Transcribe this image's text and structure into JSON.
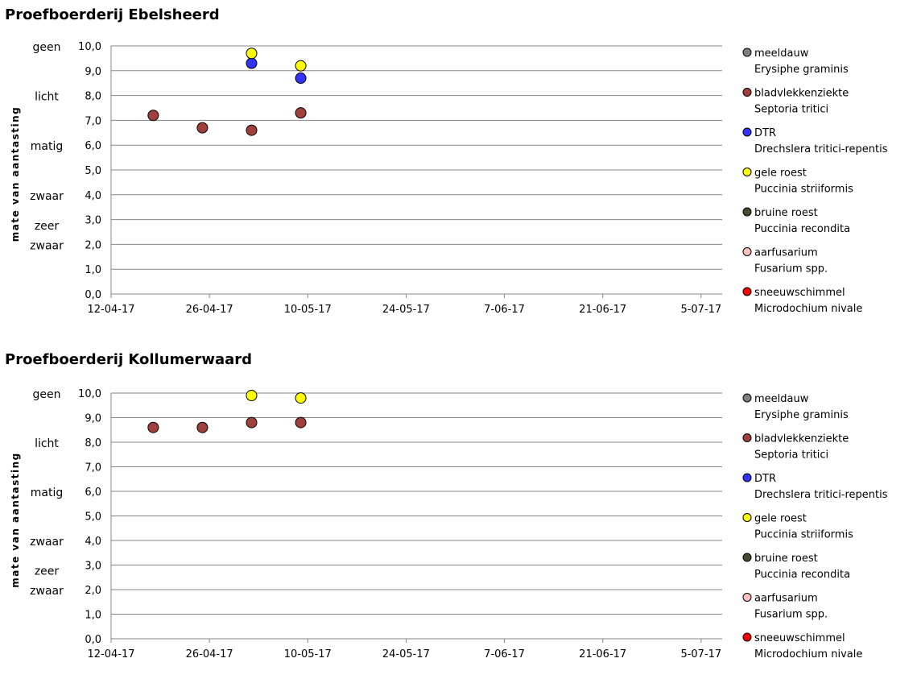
{
  "chart_data": [
    {
      "type": "scatter",
      "title": "Proefboerderij Ebelsheerd",
      "ylabel": "mate van aantasting",
      "ylim": [
        0,
        10
      ],
      "yticks": [
        "0,0",
        "1,0",
        "2,0",
        "3,0",
        "4,0",
        "5,0",
        "6,0",
        "7,0",
        "8,0",
        "9,0",
        "10,0"
      ],
      "ycategories": [
        {
          "label": "geen",
          "y": 10
        },
        {
          "label": "licht",
          "y": 8
        },
        {
          "label": "matig",
          "y": 6
        },
        {
          "label": "zwaar",
          "y": 4
        },
        {
          "label": "zeer",
          "y": 2.8
        },
        {
          "label": "zwaar",
          "y": 2
        }
      ],
      "x_start": "2017-04-12",
      "xlim_days": [
        0,
        87
      ],
      "xticks": [
        {
          "label": "12-04-17",
          "day": 0
        },
        {
          "label": "26-04-17",
          "day": 14
        },
        {
          "label": "10-05-17",
          "day": 28
        },
        {
          "label": "24-05-17",
          "day": 42
        },
        {
          "label": "7-06-17",
          "day": 56
        },
        {
          "label": "21-06-17",
          "day": 70
        },
        {
          "label": "5-07-17",
          "day": 84
        }
      ],
      "grid": true,
      "legend_position": "right",
      "series": [
        {
          "name": "meeldauw",
          "latin": "Erysiphe graminis",
          "color": "#808080",
          "points": []
        },
        {
          "name": "bladvlekkenziekte",
          "latin": "Septoria tritici",
          "color": "#A0403C",
          "points": [
            {
              "day": 6,
              "y": 7.2
            },
            {
              "day": 13,
              "y": 6.7
            },
            {
              "day": 20,
              "y": 6.6
            },
            {
              "day": 27,
              "y": 7.3
            }
          ]
        },
        {
          "name": "DTR",
          "latin": "Drechslera tritici-repentis",
          "color": "#3333FF",
          "points": [
            {
              "day": 20,
              "y": 9.3
            },
            {
              "day": 27,
              "y": 8.7
            }
          ]
        },
        {
          "name": "gele roest",
          "latin": "Puccinia striiformis",
          "color": "#FFFF00",
          "points": [
            {
              "day": 20,
              "y": 9.7
            },
            {
              "day": 27,
              "y": 9.2
            }
          ]
        },
        {
          "name": "bruine roest",
          "latin": "Puccinia recondita",
          "color": "#4A4A30",
          "points": []
        },
        {
          "name": "aarfusarium",
          "latin": "Fusarium spp.",
          "color": "#FFC0C0",
          "points": []
        },
        {
          "name": "sneeuwschimmel",
          "latin": "Microdochium nivale",
          "color": "#FF0000",
          "points": []
        }
      ]
    },
    {
      "type": "scatter",
      "title": "Proefboerderij Kollumerwaard",
      "ylabel": "mate van aantasting",
      "ylim": [
        0,
        10
      ],
      "yticks": [
        "0,0",
        "1,0",
        "2,0",
        "3,0",
        "4,0",
        "5,0",
        "6,0",
        "7,0",
        "8,0",
        "9,0",
        "10,0"
      ],
      "ycategories": [
        {
          "label": "geen",
          "y": 10
        },
        {
          "label": "licht",
          "y": 8
        },
        {
          "label": "matig",
          "y": 6
        },
        {
          "label": "zwaar",
          "y": 4
        },
        {
          "label": "zeer",
          "y": 2.8
        },
        {
          "label": "zwaar",
          "y": 2
        }
      ],
      "x_start": "2017-04-12",
      "xlim_days": [
        0,
        87
      ],
      "xticks": [
        {
          "label": "12-04-17",
          "day": 0
        },
        {
          "label": "26-04-17",
          "day": 14
        },
        {
          "label": "10-05-17",
          "day": 28
        },
        {
          "label": "24-05-17",
          "day": 42
        },
        {
          "label": "7-06-17",
          "day": 56
        },
        {
          "label": "21-06-17",
          "day": 70
        },
        {
          "label": "5-07-17",
          "day": 84
        }
      ],
      "grid": true,
      "legend_position": "right",
      "series": [
        {
          "name": "meeldauw",
          "latin": "Erysiphe graminis",
          "color": "#808080",
          "points": []
        },
        {
          "name": "bladvlekkenziekte",
          "latin": "Septoria tritici",
          "color": "#A0403C",
          "points": [
            {
              "day": 6,
              "y": 8.6
            },
            {
              "day": 13,
              "y": 8.6
            },
            {
              "day": 20,
              "y": 8.8
            },
            {
              "day": 27,
              "y": 8.8
            }
          ]
        },
        {
          "name": "DTR",
          "latin": "Drechslera tritici-repentis",
          "color": "#3333FF",
          "points": []
        },
        {
          "name": "gele roest",
          "latin": "Puccinia striiformis",
          "color": "#FFFF00",
          "points": [
            {
              "day": 20,
              "y": 9.9
            },
            {
              "day": 27,
              "y": 9.8
            }
          ]
        },
        {
          "name": "bruine roest",
          "latin": "Puccinia recondita",
          "color": "#4A4A30",
          "points": []
        },
        {
          "name": "aarfusarium",
          "latin": "Fusarium spp.",
          "color": "#FFC0C0",
          "points": []
        },
        {
          "name": "sneeuwschimmel",
          "latin": "Microdochium nivale",
          "color": "#FF0000",
          "points": []
        }
      ]
    }
  ]
}
